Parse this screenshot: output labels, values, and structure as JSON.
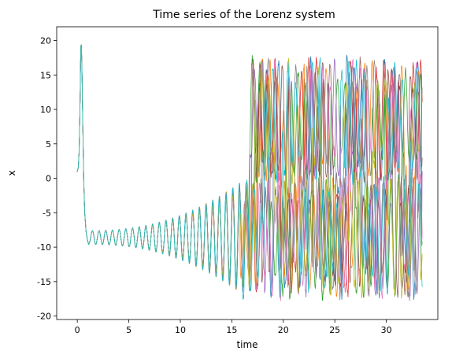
{
  "chart_data": {
    "type": "line",
    "title": "Time series of the Lorenz system",
    "xlabel": "time",
    "ylabel": "x",
    "xlim": [
      -2.0,
      35.0
    ],
    "ylim": [
      -20.5,
      22.0
    ],
    "xticks": [
      0,
      5,
      10,
      15,
      20,
      25,
      30
    ],
    "yticks": [
      -20,
      -15,
      -10,
      -5,
      0,
      5,
      10,
      15,
      20
    ],
    "grid": false,
    "legend": "none",
    "time_range": [
      0.0,
      33.5
    ],
    "series_count": 10,
    "initial_transient": [
      [
        0.0,
        1.0
      ],
      [
        0.1,
        1.6
      ],
      [
        0.18,
        4.0
      ],
      [
        0.26,
        10.0
      ],
      [
        0.33,
        18.5
      ],
      [
        0.38,
        19.8
      ],
      [
        0.44,
        17.0
      ],
      [
        0.52,
        9.0
      ],
      [
        0.62,
        0.0
      ],
      [
        0.72,
        -5.0
      ],
      [
        0.85,
        -7.8
      ],
      [
        1.0,
        -9.1
      ],
      [
        1.12,
        -9.6
      ],
      [
        1.3,
        -8.8
      ]
    ],
    "oscillation_center": -8.6,
    "oscillation_period": 0.65,
    "oscillation_amplitude_start": 1.0,
    "oscillation_amplitude_end": 8.0,
    "transition_time": 16.8,
    "chaotic_range": [
      -18.5,
      18.3
    ],
    "colors": [
      "#1f77b4",
      "#ff7f0e",
      "#2ca02c",
      "#d62728",
      "#9467bd",
      "#8c564b",
      "#e377c2",
      "#7f7f7f",
      "#bcbd22",
      "#17becf"
    ]
  }
}
